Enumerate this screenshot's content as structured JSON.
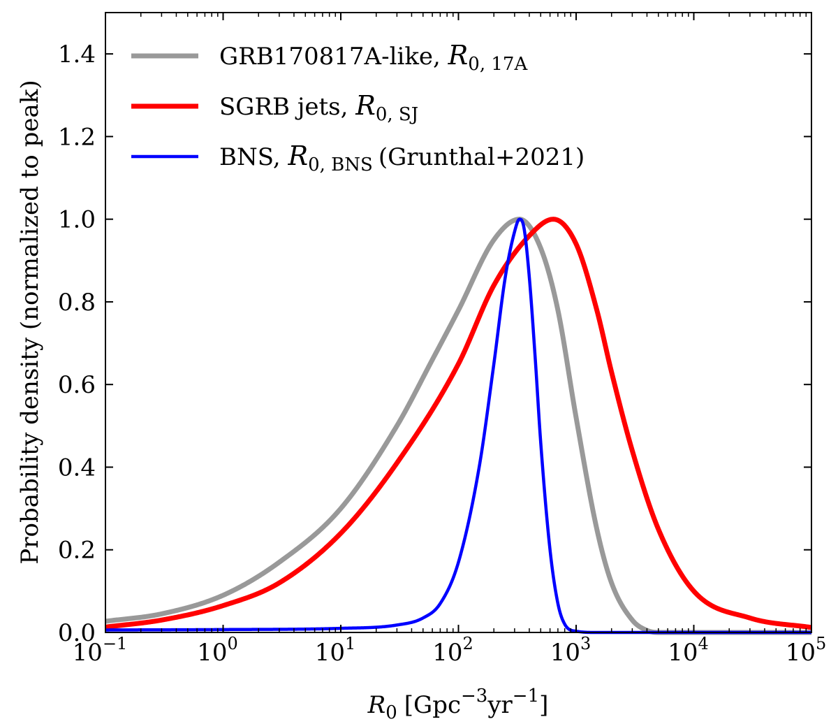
{
  "chart_data": {
    "type": "line",
    "xscale": "log",
    "xlim": [
      0.1,
      100000
    ],
    "ylim": [
      0.0,
      1.5
    ],
    "xlabel": {
      "var": "R",
      "sub": "0",
      "units_pre": "[Gpc",
      "exp1": "−3",
      "units_mid": "yr",
      "exp2": "−1",
      "units_post": "]"
    },
    "ylabel": "Probability density (normalized to peak)",
    "x_ticks": [
      {
        "base": "10",
        "exp": "−1",
        "value": 0.1
      },
      {
        "base": "10",
        "exp": "0",
        "value": 1
      },
      {
        "base": "10",
        "exp": "1",
        "value": 10
      },
      {
        "base": "10",
        "exp": "2",
        "value": 100
      },
      {
        "base": "10",
        "exp": "3",
        "value": 1000
      },
      {
        "base": "10",
        "exp": "4",
        "value": 10000
      },
      {
        "base": "10",
        "exp": "5",
        "value": 100000
      }
    ],
    "y_ticks": [
      "0.0",
      "0.2",
      "0.4",
      "0.6",
      "0.8",
      "1.0",
      "1.2",
      "1.4"
    ],
    "legend_location": "upper-left",
    "series": [
      {
        "name": "GRB170817A-like",
        "symbol": "R",
        "sub": "0, 17A",
        "suffix": "",
        "color": "#999999",
        "width": 7,
        "peak_x": 330,
        "points": [
          [
            0.1,
            0.027
          ],
          [
            0.3,
            0.045
          ],
          [
            1,
            0.09
          ],
          [
            3,
            0.17
          ],
          [
            10,
            0.3
          ],
          [
            30,
            0.5
          ],
          [
            60,
            0.66
          ],
          [
            100,
            0.78
          ],
          [
            200,
            0.95
          ],
          [
            330,
            1.0
          ],
          [
            500,
            0.93
          ],
          [
            700,
            0.78
          ],
          [
            1000,
            0.52
          ],
          [
            1500,
            0.25
          ],
          [
            2000,
            0.12
          ],
          [
            3000,
            0.03
          ],
          [
            4000,
            0.005
          ],
          [
            5000,
            0.0
          ],
          [
            100000,
            0.0
          ]
        ]
      },
      {
        "name": "SGRB jets",
        "symbol": "R",
        "sub": "0, SJ",
        "suffix": "",
        "color": "#ff0000",
        "width": 7,
        "peak_x": 640,
        "points": [
          [
            0.1,
            0.013
          ],
          [
            0.3,
            0.03
          ],
          [
            1,
            0.065
          ],
          [
            3,
            0.12
          ],
          [
            10,
            0.24
          ],
          [
            30,
            0.41
          ],
          [
            100,
            0.65
          ],
          [
            200,
            0.84
          ],
          [
            400,
            0.96
          ],
          [
            640,
            1.0
          ],
          [
            1000,
            0.94
          ],
          [
            1500,
            0.78
          ],
          [
            2000,
            0.63
          ],
          [
            3000,
            0.44
          ],
          [
            5000,
            0.25
          ],
          [
            10000,
            0.1
          ],
          [
            30000,
            0.035
          ],
          [
            100000,
            0.012
          ]
        ]
      },
      {
        "name": "BNS",
        "symbol": "R",
        "sub": "0, BNS",
        "suffix": "(Grunthal+2021)",
        "color": "#0000ff",
        "width": 4.5,
        "peak_x": 330,
        "points": [
          [
            0.1,
            0.006
          ],
          [
            1,
            0.007
          ],
          [
            10,
            0.01
          ],
          [
            30,
            0.018
          ],
          [
            50,
            0.035
          ],
          [
            70,
            0.07
          ],
          [
            100,
            0.17
          ],
          [
            150,
            0.4
          ],
          [
            200,
            0.65
          ],
          [
            250,
            0.86
          ],
          [
            300,
            0.97
          ],
          [
            330,
            1.0
          ],
          [
            360,
            0.98
          ],
          [
            400,
            0.86
          ],
          [
            450,
            0.66
          ],
          [
            500,
            0.46
          ],
          [
            600,
            0.2
          ],
          [
            700,
            0.07
          ],
          [
            800,
            0.02
          ],
          [
            1000,
            0.003
          ],
          [
            1500,
            0.0
          ],
          [
            100000,
            0.0
          ]
        ]
      }
    ]
  }
}
